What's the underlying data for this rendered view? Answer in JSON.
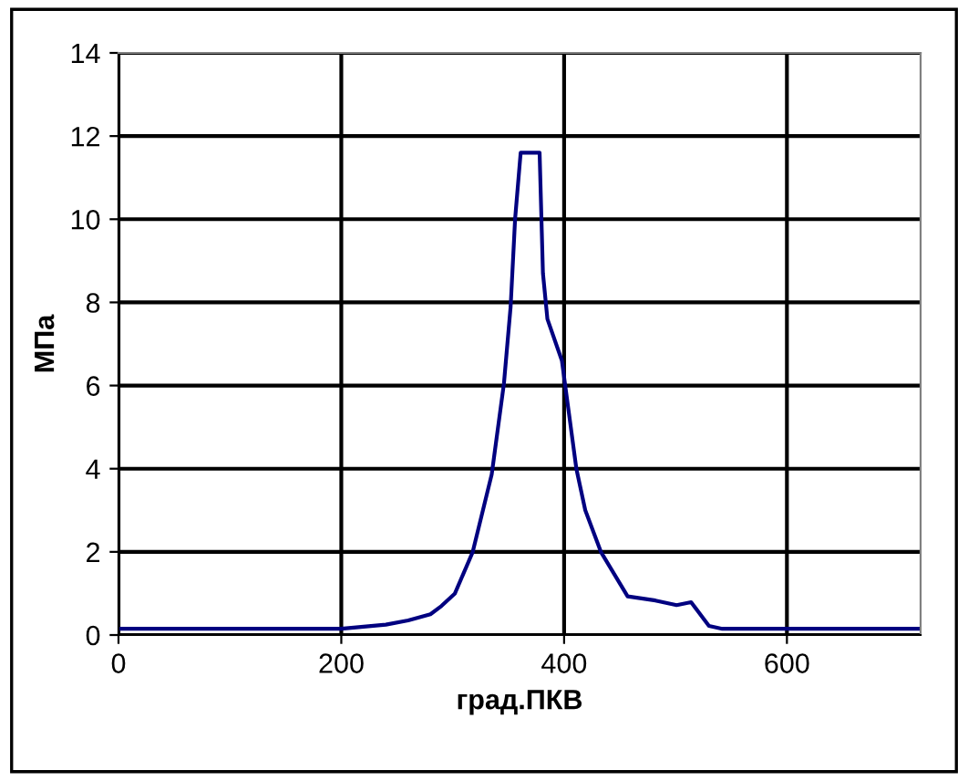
{
  "chart_data": {
    "type": "line",
    "xlabel": "град.ПКВ",
    "ylabel": "МПа",
    "xlim": [
      0,
      720
    ],
    "xticks": [
      0,
      200,
      400,
      600
    ],
    "ylim": [
      0,
      14
    ],
    "yticks": [
      0,
      2,
      4,
      6,
      8,
      10,
      12,
      14
    ],
    "grid": true,
    "legend": false,
    "series": [
      {
        "color": "#000080",
        "x": [
          0,
          100,
          200,
          240,
          260,
          280,
          290,
          302,
          318,
          335,
          346,
          352,
          356,
          361,
          378,
          381,
          385,
          398,
          411,
          419,
          433,
          457,
          482,
          501,
          514,
          530,
          542,
          600,
          720
        ],
        "values": [
          0.15,
          0.15,
          0.15,
          0.25,
          0.35,
          0.5,
          0.7,
          1.0,
          2.0,
          3.86,
          6.05,
          7.9,
          10.0,
          11.6,
          11.6,
          8.7,
          7.6,
          6.6,
          4.0,
          3.0,
          2.0,
          0.93,
          0.83,
          0.72,
          0.79,
          0.22,
          0.15,
          0.15,
          0.15
        ]
      }
    ]
  }
}
